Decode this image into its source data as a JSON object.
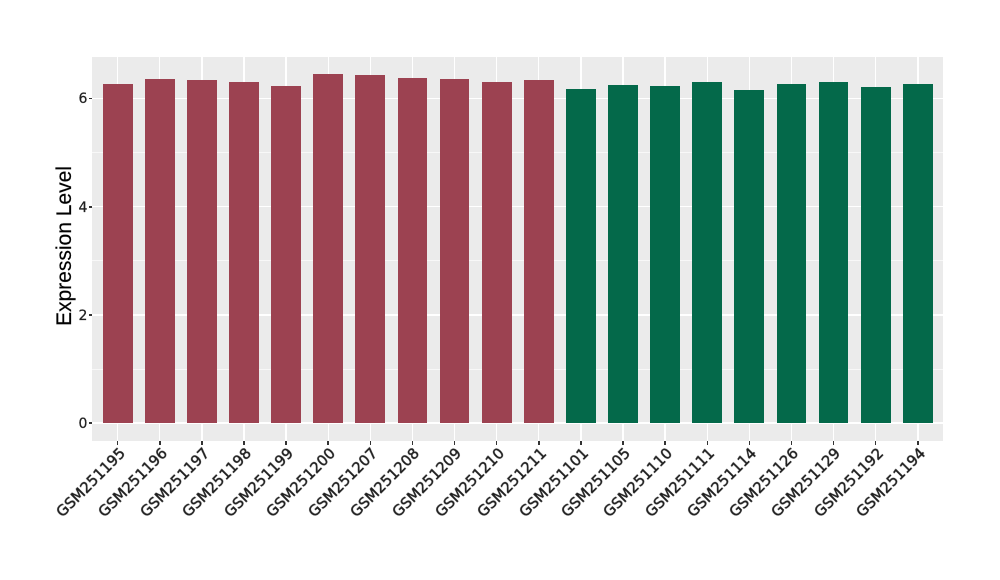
{
  "figure": {
    "background": "#ffffff"
  },
  "chart_data": {
    "type": "bar",
    "title": "",
    "xlabel": "",
    "ylabel": "Expression Level",
    "categories": [
      "GSM251195",
      "GSM251196",
      "GSM251197",
      "GSM251198",
      "GSM251199",
      "GSM251200",
      "GSM251207",
      "GSM251208",
      "GSM251209",
      "GSM251210",
      "GSM251211",
      "GSM251101",
      "GSM251105",
      "GSM251110",
      "GSM251111",
      "GSM251114",
      "GSM251126",
      "GSM251129",
      "GSM251192",
      "GSM251194"
    ],
    "values": [
      6.27,
      6.36,
      6.34,
      6.31,
      6.23,
      6.45,
      6.43,
      6.38,
      6.37,
      6.31,
      6.35,
      6.18,
      6.25,
      6.24,
      6.31,
      6.15,
      6.27,
      6.31,
      6.21,
      6.27
    ],
    "groups": [
      "group1",
      "group1",
      "group1",
      "group1",
      "group1",
      "group1",
      "group1",
      "group1",
      "group1",
      "group1",
      "group1",
      "group2",
      "group2",
      "group2",
      "group2",
      "group2",
      "group2",
      "group2",
      "group2",
      "group2"
    ],
    "group_colors": {
      "group1": "#9c4251",
      "group2": "#04694a"
    },
    "y_ticks": [
      0,
      2,
      4,
      6
    ],
    "y_minor_gridlines": [
      1,
      3,
      5
    ],
    "ylim": [
      -0.3225,
      6.7725
    ],
    "bar_width_fraction": 0.707,
    "grid": "on",
    "legend_position": "none",
    "styling": {
      "panel_background": "#ebebeb",
      "grid_major_color": "#ffffff",
      "grid_minor_color": "rgba(255,255,255,0.65)",
      "tick_mark_color": "#333333",
      "tick_label_color": "#1f1f1f",
      "axis_title_color": "#000000"
    }
  }
}
